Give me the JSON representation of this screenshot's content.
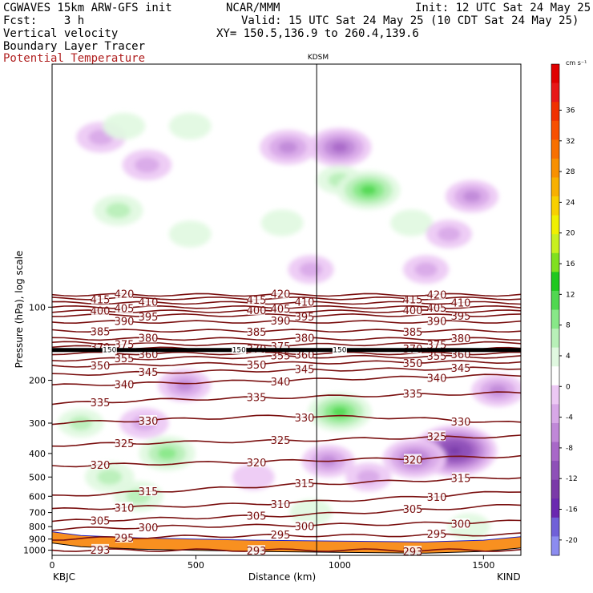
{
  "header": {
    "model": "CGWAVES 15km ARW-GFS init",
    "org": "NCAR/MMM",
    "init": "Init: 12 UTC Sat 24 May 25",
    "fcst": "Fcst:    3 h",
    "valid": "Valid: 15 UTC Sat 24 May 25 (10 CDT Sat 24 May 25)",
    "field1": "Vertical velocity",
    "field2": "Boundary Layer Tracer",
    "field3": "Potential Temperature",
    "xy": "XY= 150.5,136.9 to 260.4,139.6"
  },
  "chart_data": {
    "type": "heatmap",
    "title": "",
    "xlabel": "Distance (km)",
    "ylabel": "Pressure (hPa), log scale",
    "xlim": [
      0,
      1630
    ],
    "ylim": [
      1050,
      10
    ],
    "y_scale": "log",
    "x_ticks": [
      0,
      500,
      1000,
      1500
    ],
    "y_ticks": [
      100,
      200,
      300,
      400,
      500,
      600,
      700,
      800,
      900,
      1000
    ],
    "endpoint_left": "KBJC",
    "endpoint_right": "KIND",
    "marker_label": "KDSM",
    "marker_x": 920,
    "colorbar": {
      "unit": "cm s⁻¹",
      "levels": [
        -20,
        -16,
        -12,
        -8,
        -4,
        0,
        4,
        8,
        12,
        16,
        20,
        24,
        28,
        32,
        36
      ],
      "colors": [
        "#8c8cf0",
        "#7060d8",
        "#6a28b0",
        "#7a3aa8",
        "#8e50b8",
        "#a868c8",
        "#c088d8",
        "#d8a8e8",
        "#ecc8f4",
        "#ffffff",
        "#e0f8e0",
        "#b8f0b8",
        "#88e888",
        "#50d850",
        "#20c820",
        "#80e020",
        "#c8f020",
        "#f0f000",
        "#f8d000",
        "#f8b000",
        "#f89000",
        "#f87000",
        "#f85000",
        "#f03000",
        "#e81818",
        "#e00000"
      ],
      "tick_labels": [
        "-20",
        "-16",
        "-12",
        "-8",
        "-4",
        "0",
        "4",
        "8",
        "12",
        "16",
        "20",
        "24",
        "28",
        "32",
        "36"
      ]
    },
    "theta_contours": [
      {
        "value": 293,
        "p": [
          1000,
          1000,
          1000,
          1000,
          1000
        ],
        "label": "293"
      },
      {
        "value": 295,
        "p": [
          900,
          880,
          870,
          870,
          860
        ],
        "label": "295"
      },
      {
        "value": 300,
        "p": [
          820,
          800,
          790,
          780,
          760
        ],
        "label": "300"
      },
      {
        "value": 305,
        "p": [
          760,
          740,
          720,
          690,
          650
        ],
        "label": "305"
      },
      {
        "value": 310,
        "p": [
          680,
          660,
          640,
          610,
          570
        ],
        "label": "310"
      },
      {
        "value": 315,
        "p": [
          600,
          570,
          540,
          520,
          500
        ],
        "label": "315"
      },
      {
        "value": 320,
        "p": [
          450,
          440,
          430,
          420,
          410
        ],
        "label": "320"
      },
      {
        "value": 325,
        "p": [
          370,
          360,
          355,
          345,
          340
        ],
        "label": "325"
      },
      {
        "value": 330,
        "p": [
          300,
          290,
          280,
          285,
          300
        ],
        "label": "330"
      },
      {
        "value": 335,
        "p": [
          250,
          240,
          235,
          230,
          225
        ],
        "label": "335"
      },
      {
        "value": 340,
        "p": [
          210,
          205,
          200,
          195,
          190
        ],
        "label": "340"
      },
      {
        "value": 345,
        "p": [
          190,
          185,
          182,
          180,
          178
        ],
        "label": "345"
      },
      {
        "value": 350,
        "p": [
          175,
          172,
          170,
          168,
          168
        ],
        "label": "350"
      },
      {
        "value": 355,
        "p": [
          165,
          162,
          160,
          160,
          160
        ],
        "label": "355"
      },
      {
        "value": 360,
        "p": [
          155,
          155,
          155,
          155,
          155
        ],
        "label": "360"
      },
      {
        "value": 370,
        "p": [
          145,
          148,
          150,
          150,
          148
        ],
        "label": "370"
      },
      {
        "value": 375,
        "p": [
          140,
          142,
          143,
          142,
          140
        ],
        "label": "375"
      },
      {
        "value": 380,
        "p": [
          135,
          135,
          135,
          135,
          135
        ],
        "label": "380"
      },
      {
        "value": 385,
        "p": [
          125,
          125,
          125,
          125,
          125
        ],
        "label": "385"
      },
      {
        "value": 390,
        "p": [
          115,
          115,
          115,
          115,
          115
        ],
        "label": "390"
      },
      {
        "value": 395,
        "p": [
          108,
          108,
          108,
          108,
          108
        ],
        "label": "395"
      },
      {
        "value": 400,
        "p": [
          104,
          104,
          104,
          104,
          104
        ],
        "label": "400"
      },
      {
        "value": 405,
        "p": [
          100,
          100,
          100,
          100,
          100
        ],
        "label": "405"
      },
      {
        "value": 410,
        "p": [
          96,
          96,
          96,
          96,
          96
        ],
        "label": "410"
      },
      {
        "value": 415,
        "p": [
          92,
          92,
          92,
          92,
          92
        ],
        "label": "415"
      },
      {
        "value": 420,
        "p": [
          89,
          89,
          89,
          89,
          89
        ],
        "label": "420"
      }
    ],
    "theta_contour_x": [
      0,
      400,
      800,
      1200,
      1630
    ],
    "pv_label": "150",
    "velocity_blobs": [
      {
        "x": 170,
        "p": 20,
        "w": -4
      },
      {
        "x": 250,
        "p": 18,
        "w": 2
      },
      {
        "x": 480,
        "p": 18,
        "w": 2
      },
      {
        "x": 330,
        "p": 26,
        "w": -4
      },
      {
        "x": 820,
        "p": 22,
        "w": -6
      },
      {
        "x": 1000,
        "p": 22,
        "w": -8
      },
      {
        "x": 1000,
        "p": 30,
        "w": 3
      },
      {
        "x": 1100,
        "p": 33,
        "w": 8
      },
      {
        "x": 1460,
        "p": 35,
        "w": -5
      },
      {
        "x": 230,
        "p": 40,
        "w": 4
      },
      {
        "x": 480,
        "p": 50,
        "w": 2
      },
      {
        "x": 800,
        "p": 45,
        "w": 2
      },
      {
        "x": 1250,
        "p": 45,
        "w": 2
      },
      {
        "x": 1380,
        "p": 50,
        "w": -3
      },
      {
        "x": 900,
        "p": 70,
        "w": -3
      },
      {
        "x": 1300,
        "p": 70,
        "w": -3
      },
      {
        "x": 1000,
        "p": 270,
        "w": 8
      },
      {
        "x": 1400,
        "p": 390,
        "w": -14
      },
      {
        "x": 1260,
        "p": 420,
        "w": -8
      },
      {
        "x": 400,
        "p": 400,
        "w": 6
      },
      {
        "x": 320,
        "p": 300,
        "w": -4
      },
      {
        "x": 460,
        "p": 210,
        "w": -5
      },
      {
        "x": 1550,
        "p": 220,
        "w": -5
      },
      {
        "x": 960,
        "p": 430,
        "w": -5
      },
      {
        "x": 300,
        "p": 600,
        "w": 4
      },
      {
        "x": 200,
        "p": 500,
        "w": 4
      },
      {
        "x": 100,
        "p": 300,
        "w": 3
      },
      {
        "x": 900,
        "p": 700,
        "w": 2
      },
      {
        "x": 1450,
        "p": 800,
        "w": 2
      },
      {
        "x": 1100,
        "p": 500,
        "w": -3
      },
      {
        "x": 700,
        "p": 500,
        "w": -2
      }
    ]
  }
}
